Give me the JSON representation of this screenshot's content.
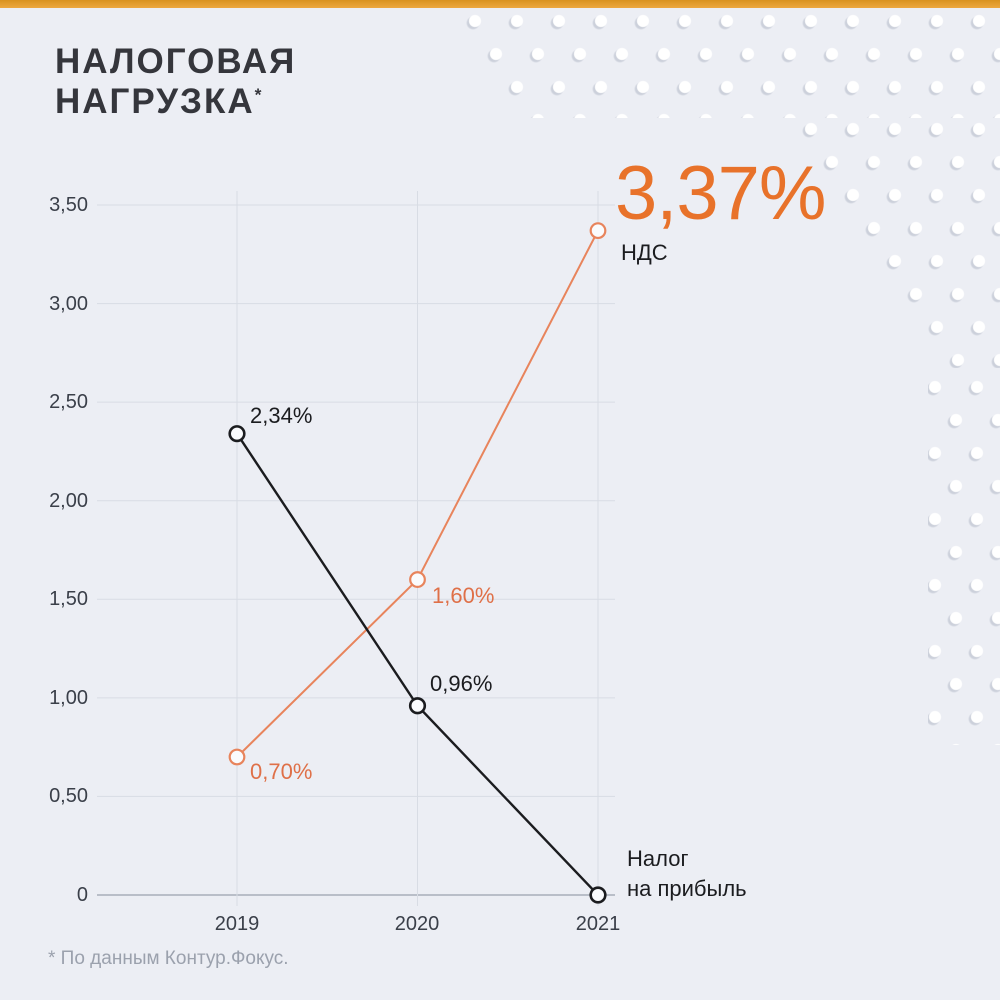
{
  "header": {
    "title_line1": "НАЛОГОВАЯ",
    "title_line2": "НАГРУЗКА",
    "title_footnote_marker": "*"
  },
  "footnote": "* По данным Контур.Фокус.",
  "colors": {
    "background": "#ECEEF4",
    "top_bar": "#EAA23B",
    "grid": "#D8DCE4",
    "axis": "#A8AEB9",
    "title": "#35363C",
    "tick_label": "#3A3F49",
    "orange_accent": "#E8722A",
    "footnote": "#9BA1AD"
  },
  "chart_data": {
    "type": "line",
    "title": "НАЛОГОВАЯ НАГРУЗКА*",
    "categories": [
      "2019",
      "2020",
      "2021"
    ],
    "series": [
      {
        "name": "НДС",
        "color": "#E8845C",
        "marker_fill": "#fafbfd",
        "line_width": 2,
        "values": [
          0.7,
          1.6,
          3.37
        ],
        "point_labels": [
          "0,70%",
          "1,60%"
        ],
        "big_value_label": "3,37%",
        "big_value_series_label": "НДС"
      },
      {
        "name": "Налог на прибыль",
        "color": "#1b1c1f",
        "marker_fill": "#fafbfd",
        "line_width": 2.4,
        "values": [
          2.34,
          0.96,
          0
        ],
        "point_labels": [
          "2,34%",
          "0,96%"
        ],
        "end_label": "Налог\nна прибыль"
      }
    ],
    "ylim": [
      0,
      3.5
    ],
    "yticks": [
      {
        "value": 0,
        "label": "0"
      },
      {
        "value": 0.5,
        "label": "0,50"
      },
      {
        "value": 1,
        "label": "1,00"
      },
      {
        "value": 1.5,
        "label": "1,50"
      },
      {
        "value": 2,
        "label": "2,00"
      },
      {
        "value": 2.5,
        "label": "2,50"
      },
      {
        "value": 3,
        "label": "3,00"
      },
      {
        "value": 3.5,
        "label": "3,50"
      }
    ],
    "grid": "horizontal gridlines every 0.50 plus vertical gridline per year",
    "legend": "inline data labels next to points"
  }
}
